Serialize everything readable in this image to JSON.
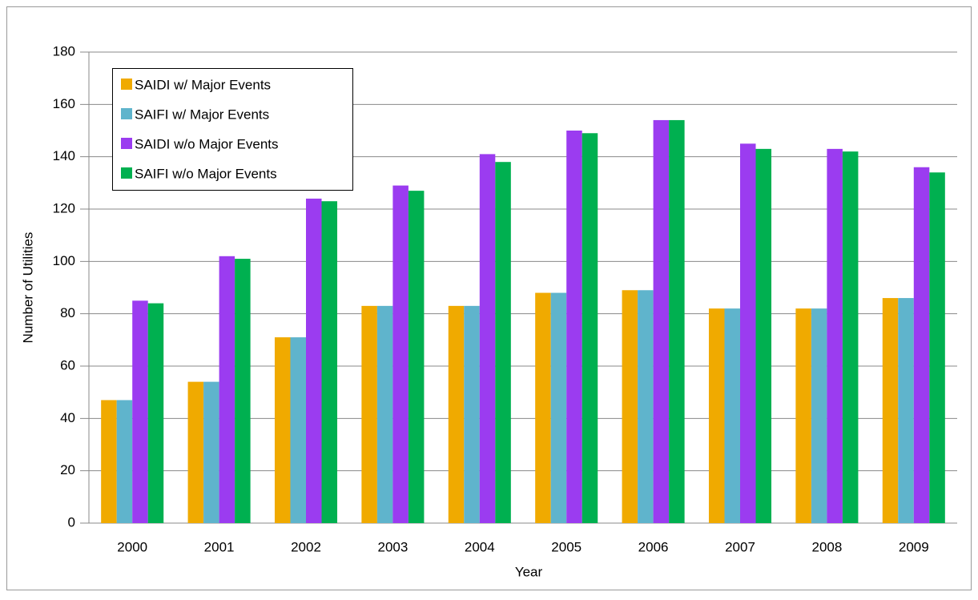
{
  "chart_data": {
    "type": "bar",
    "x_label": "Year",
    "y_label": "Number of Utilities",
    "categories": [
      "2000",
      "2001",
      "2002",
      "2003",
      "2004",
      "2005",
      "2006",
      "2007",
      "2008",
      "2009"
    ],
    "series": [
      {
        "name": "SAIDI w/ Major Events",
        "color": "#f0aa00",
        "values": [
          47,
          54,
          71,
          83,
          83,
          88,
          89,
          82,
          82,
          86
        ]
      },
      {
        "name": "SAIFI w/ Major Events",
        "color": "#5fb4cc",
        "values": [
          47,
          54,
          71,
          83,
          83,
          88,
          89,
          82,
          82,
          86
        ]
      },
      {
        "name": "SAIDI w/o Major Events",
        "color": "#9b3cf0",
        "values": [
          85,
          102,
          124,
          129,
          141,
          150,
          154,
          145,
          143,
          136
        ]
      },
      {
        "name": "SAIFI w/o Major Events",
        "color": "#00b050",
        "values": [
          84,
          101,
          123,
          127,
          138,
          149,
          154,
          143,
          142,
          134
        ]
      }
    ],
    "ylim": [
      0,
      180
    ],
    "yticks": [
      0,
      20,
      40,
      60,
      80,
      100,
      120,
      140,
      160,
      180
    ],
    "grid": true,
    "legend": "top-left"
  }
}
